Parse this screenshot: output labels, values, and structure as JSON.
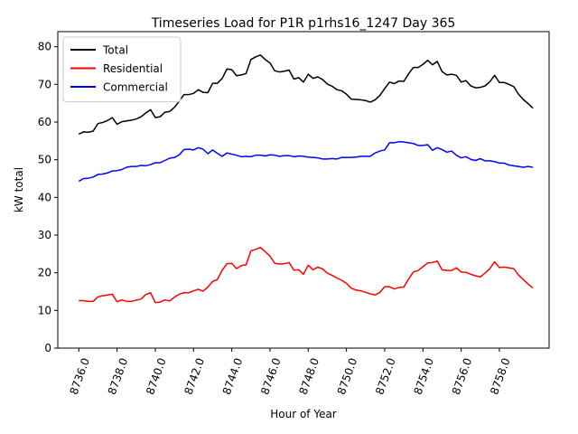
{
  "chart_data": {
    "type": "line",
    "title": "Timeseries Load for P1R p1rhs16_1247  Day 365",
    "xlabel": "Hour of Year",
    "ylabel": "kW total",
    "xlim": [
      8734.9,
      8760.6
    ],
    "ylim": [
      0,
      84
    ],
    "x_ticks": [
      8736,
      8738,
      8740,
      8742,
      8744,
      8746,
      8748,
      8750,
      8752,
      8754,
      8756,
      8758
    ],
    "x_tick_labels": [
      "8736.0",
      "8738.0",
      "8740.0",
      "8742.0",
      "8744.0",
      "8746.0",
      "8748.0",
      "8750.0",
      "8752.0",
      "8754.0",
      "8756.0",
      "8758.0"
    ],
    "y_ticks": [
      0,
      10,
      20,
      30,
      40,
      50,
      60,
      70,
      80
    ],
    "y_tick_labels": [
      "0",
      "10",
      "20",
      "30",
      "40",
      "50",
      "60",
      "70",
      "80"
    ],
    "grid": false,
    "legend_position": "top-left",
    "x_start": 8736,
    "x_step": 0.25,
    "series": [
      {
        "name": "Total",
        "color": "#000000",
        "values": [
          56.8,
          57.4,
          57.3,
          57.6,
          59.6,
          59.9,
          60.4,
          61.2,
          59.4,
          60.1,
          60.3,
          60.5,
          60.8,
          61.4,
          62.4,
          63.3,
          61.2,
          61.4,
          62.6,
          62.8,
          63.9,
          65.5,
          67.3,
          67.3,
          67.6,
          68.6,
          67.9,
          67.8,
          70.3,
          70.3,
          71.6,
          74.1,
          73.9,
          72.3,
          72.5,
          72.9,
          76.6,
          77.3,
          77.8,
          76.6,
          75.7,
          73.6,
          73.3,
          73.5,
          73.8,
          71.4,
          71.8,
          70.6,
          72.7,
          71.6,
          72.0,
          71.3,
          70.1,
          69.5,
          68.6,
          68.3,
          67.4,
          66.1,
          66.0,
          65.9,
          65.7,
          65.3,
          65.9,
          67.1,
          68.9,
          70.6,
          70.2,
          70.9,
          70.8,
          72.8,
          74.5,
          74.5,
          75.3,
          76.4,
          75.2,
          76.1,
          73.4,
          72.5,
          72.7,
          72.4,
          70.6,
          71.0,
          69.6,
          69.1,
          69.2,
          69.6,
          70.7,
          72.4,
          70.5,
          70.5,
          70.0,
          69.4,
          67.4,
          66.0,
          64.9,
          63.7
        ]
      },
      {
        "name": "Residential",
        "color": "#ff0000",
        "values": [
          12.6,
          12.6,
          12.4,
          12.4,
          13.6,
          13.9,
          14.1,
          14.3,
          12.3,
          12.8,
          12.4,
          12.4,
          12.7,
          13.0,
          14.2,
          14.7,
          12.1,
          12.2,
          12.8,
          12.5,
          13.5,
          14.3,
          14.7,
          14.7,
          15.2,
          15.6,
          15.1,
          16.2,
          17.7,
          18.2,
          20.7,
          22.4,
          22.5,
          21.1,
          21.9,
          22.1,
          25.8,
          26.2,
          26.7,
          25.6,
          24.4,
          22.5,
          22.3,
          22.4,
          22.7,
          20.7,
          20.8,
          19.6,
          22.0,
          20.8,
          21.5,
          21.0,
          19.9,
          19.3,
          18.6,
          18.0,
          17.2,
          15.9,
          15.4,
          15.2,
          14.8,
          14.4,
          14.1,
          14.8,
          16.3,
          16.3,
          15.7,
          16.1,
          16.2,
          18.3,
          20.2,
          20.6,
          21.6,
          22.6,
          22.7,
          23.1,
          20.8,
          20.6,
          20.6,
          21.3,
          20.2,
          20.1,
          19.6,
          19.2,
          18.9,
          19.9,
          21.1,
          22.9,
          21.4,
          21.5,
          21.3,
          21.1,
          19.4,
          18.2,
          17.0,
          16.0
        ]
      },
      {
        "name": "Commercial",
        "color": "#0000ff",
        "values": [
          44.3,
          45.0,
          45.1,
          45.4,
          46.1,
          46.2,
          46.5,
          47.0,
          47.1,
          47.4,
          48.0,
          48.2,
          48.2,
          48.5,
          48.4,
          48.7,
          49.2,
          49.2,
          49.8,
          50.4,
          50.6,
          51.3,
          52.7,
          52.8,
          52.6,
          53.2,
          52.8,
          51.6,
          52.6,
          51.7,
          50.9,
          51.8,
          51.5,
          51.2,
          50.8,
          50.9,
          50.8,
          51.2,
          51.2,
          51.0,
          51.3,
          51.2,
          50.9,
          51.1,
          51.1,
          50.8,
          51.0,
          50.9,
          50.7,
          50.6,
          50.5,
          50.2,
          50.2,
          50.3,
          50.2,
          50.6,
          50.6,
          50.6,
          50.7,
          50.9,
          50.9,
          50.9,
          51.8,
          52.3,
          52.6,
          54.5,
          54.5,
          54.8,
          54.7,
          54.5,
          54.3,
          53.8,
          53.8,
          54.0,
          52.5,
          53.2,
          52.7,
          52.0,
          52.3,
          51.2,
          50.5,
          50.8,
          50.1,
          49.8,
          50.3,
          49.7,
          49.7,
          49.5,
          49.1,
          49.1,
          48.6,
          48.4,
          48.2,
          48.0,
          48.2,
          48.0
        ]
      }
    ]
  }
}
